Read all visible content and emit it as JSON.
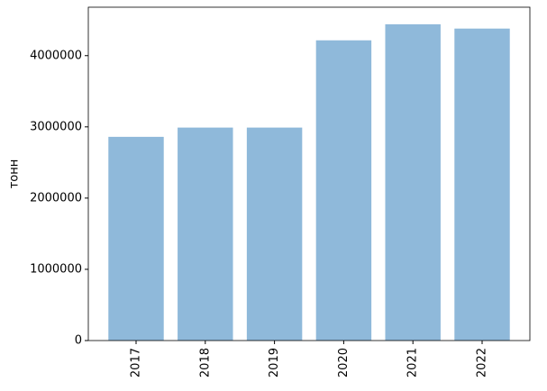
{
  "chart_data": {
    "type": "bar",
    "y_label": "тонн",
    "categories": [
      "2017",
      "2018",
      "2019",
      "2020",
      "2021",
      "2022"
    ],
    "values": [
      2860000,
      2990000,
      2990000,
      4215000,
      4440000,
      4380000
    ],
    "color": "#8fb9da",
    "ylim": [
      0,
      4680000
    ],
    "yticks": [
      0,
      1000000,
      2000000,
      3000000,
      4000000
    ],
    "grid": false
  }
}
